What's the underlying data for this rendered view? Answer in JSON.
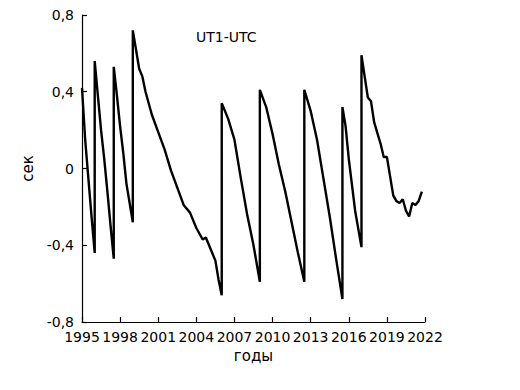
{
  "chart_data": {
    "type": "line",
    "annotation": "UT1-UTC",
    "x_label": "годы",
    "y_label": "сек",
    "color": "#000000",
    "grid": false,
    "x": [
      1995.0,
      1995.25,
      1995.5,
      1995.75,
      1996.0,
      1996.0,
      1996.25,
      1996.5,
      1996.75,
      1997.0,
      1997.25,
      1997.5,
      1997.5,
      1997.75,
      1998.0,
      1998.25,
      1998.5,
      1998.75,
      1999.0,
      1999.0,
      1999.25,
      1999.5,
      1999.75,
      2000.0,
      2000.5,
      2001.0,
      2001.5,
      2002.0,
      2002.5,
      2003.0,
      2003.5,
      2004.0,
      2004.5,
      2004.75,
      2005.0,
      2005.5,
      2005.75,
      2006.0,
      2006.0,
      2006.5,
      2007.0,
      2007.5,
      2008.0,
      2008.5,
      2009.0,
      2009.0,
      2009.5,
      2010.0,
      2010.5,
      2011.0,
      2011.5,
      2012.0,
      2012.5,
      2012.5,
      2013.0,
      2013.5,
      2014.0,
      2014.5,
      2015.0,
      2015.5,
      2015.5,
      2015.75,
      2016.0,
      2016.5,
      2017.0,
      2017.0,
      2017.25,
      2017.5,
      2017.75,
      2018.0,
      2018.5,
      2018.75,
      2019.0,
      2019.25,
      2019.5,
      2019.75,
      2020.0,
      2020.25,
      2020.5,
      2020.75,
      2021.0,
      2021.25,
      2021.5,
      2021.75
    ],
    "values": [
      0.42,
      0.15,
      -0.05,
      -0.25,
      -0.44,
      0.56,
      0.38,
      0.2,
      0.05,
      -0.12,
      -0.3,
      -0.47,
      0.53,
      0.38,
      0.22,
      0.08,
      -0.08,
      -0.18,
      -0.28,
      0.72,
      0.62,
      0.52,
      0.48,
      0.4,
      0.28,
      0.19,
      0.1,
      -0.01,
      -0.1,
      -0.19,
      -0.23,
      -0.31,
      -0.37,
      -0.36,
      -0.4,
      -0.48,
      -0.58,
      -0.66,
      0.34,
      0.26,
      0.15,
      -0.05,
      -0.24,
      -0.4,
      -0.59,
      0.41,
      0.32,
      0.18,
      0.02,
      -0.12,
      -0.28,
      -0.44,
      -0.59,
      0.41,
      0.3,
      0.15,
      -0.05,
      -0.25,
      -0.47,
      -0.68,
      0.32,
      0.22,
      0.05,
      -0.22,
      -0.41,
      0.59,
      0.48,
      0.37,
      0.35,
      0.24,
      0.13,
      0.06,
      0.06,
      -0.04,
      -0.14,
      -0.17,
      -0.18,
      -0.16,
      -0.22,
      -0.25,
      -0.18,
      -0.19,
      -0.17,
      -0.12
    ],
    "xlim": [
      1995,
      2022
    ],
    "xticks": [
      1995,
      1998,
      2001,
      2004,
      2007,
      2010,
      2013,
      2016,
      2019,
      2022
    ],
    "ylim": [
      -0.8,
      0.8
    ],
    "yticks": [
      {
        "value": -0.8,
        "label": "-0,8"
      },
      {
        "value": -0.4,
        "label": "-0,4"
      },
      0,
      {
        "value": 0.4,
        "label": "0,4"
      },
      {
        "value": 0.8,
        "label": "0,8"
      }
    ]
  }
}
